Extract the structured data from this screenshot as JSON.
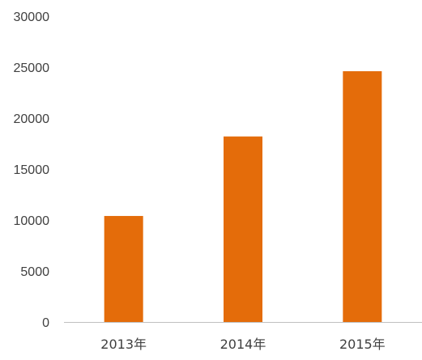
{
  "chart_data": {
    "type": "bar",
    "categories": [
      "2013年",
      "2014年",
      "2015年"
    ],
    "values": [
      10400,
      18200,
      24600
    ],
    "title": "",
    "xlabel": "",
    "ylabel": "",
    "ylim": [
      0,
      30000
    ],
    "yticks": [
      0,
      5000,
      10000,
      15000,
      20000,
      25000,
      30000
    ],
    "grid": false,
    "legend": "none",
    "bar_color": "#E46C0A"
  }
}
